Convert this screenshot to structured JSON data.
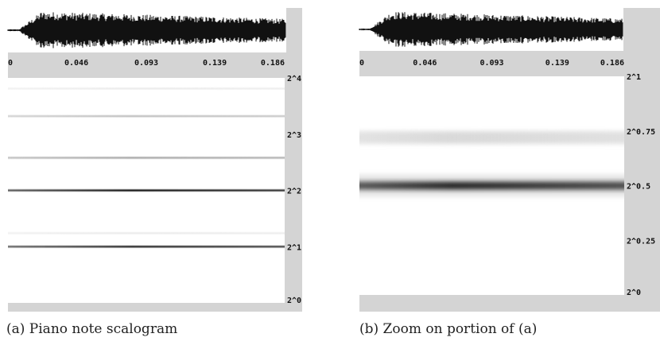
{
  "colors": {
    "frame_gray": "#d4d4d4",
    "waveform": "#111111",
    "ridge": "#000000"
  },
  "chart_data": [
    {
      "type": "heatmap",
      "caption": "(a) Piano note scalogram",
      "x_ticks": [
        "0",
        "0.046",
        "0.093",
        "0.139",
        "0.186"
      ],
      "x_values": [
        0,
        0.046,
        0.093,
        0.139,
        0.186
      ],
      "xlim": [
        0,
        0.186
      ],
      "y_ticks": [
        "2^4",
        "2^3",
        "2^2",
        "2^1",
        "2^0"
      ],
      "y_exponents": [
        4,
        3,
        2,
        1,
        0
      ],
      "ylim_exponent": [
        0,
        4
      ],
      "ridges": [
        {
          "exponent": 1.0,
          "strength": 0.85
        },
        {
          "exponent": 2.0,
          "strength": 0.95
        },
        {
          "exponent": 2.58,
          "strength": 0.35
        },
        {
          "exponent": 3.32,
          "strength": 0.25
        },
        {
          "exponent": 3.81,
          "strength": 0.08
        },
        {
          "exponent": 1.24,
          "strength": 0.08
        }
      ]
    },
    {
      "type": "heatmap",
      "caption": "(b) Zoom on portion of (a)",
      "x_ticks": [
        "0",
        "0.046",
        "0.093",
        "0.139",
        "0.186"
      ],
      "x_values": [
        0,
        0.046,
        0.093,
        0.139,
        0.186
      ],
      "xlim": [
        0,
        0.186
      ],
      "y_ticks": [
        "2^1",
        "2^0.75",
        "2^0.5",
        "2^0.25",
        "2^0"
      ],
      "y_exponents": [
        1,
        0.75,
        0.5,
        0.25,
        0
      ],
      "ylim_exponent": [
        0,
        1
      ],
      "ridges": [
        {
          "exponent": 0.5,
          "strength": 1.0
        },
        {
          "exponent": 0.72,
          "strength": 0.15
        }
      ]
    }
  ]
}
